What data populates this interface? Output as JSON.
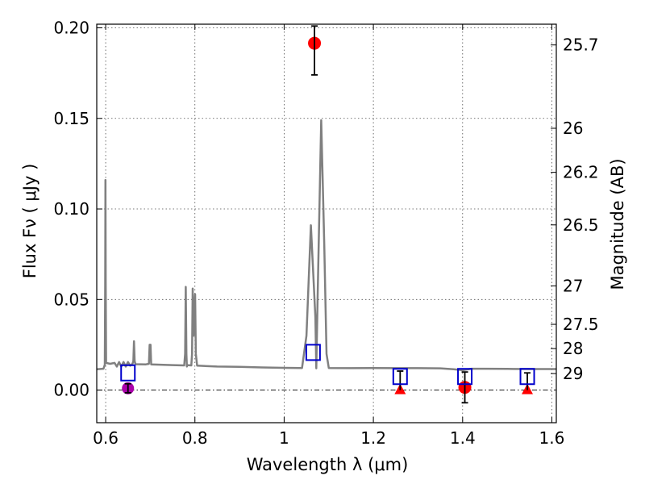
{
  "chart_data": {
    "type": "scatter",
    "title": "",
    "xlabel": "Wavelength  λ (μm)",
    "ylabel": "Flux  Fν  ( μJy )",
    "y2label": "Magnitude (AB)",
    "xlim": [
      0.58,
      1.61
    ],
    "ylim": [
      -0.018,
      0.202
    ],
    "xticks": [
      {
        "value": 0.6,
        "label": "0.6"
      },
      {
        "value": 0.8,
        "label": "0.8"
      },
      {
        "value": 1.0,
        "label": "1"
      },
      {
        "value": 1.2,
        "label": "1.2"
      },
      {
        "value": 1.4,
        "label": "1.4"
      },
      {
        "value": 1.6,
        "label": "1.6"
      }
    ],
    "yticks": [
      {
        "value": 0.0,
        "label": "0.00"
      },
      {
        "value": 0.05,
        "label": "0.05"
      },
      {
        "value": 0.1,
        "label": "0.10"
      },
      {
        "value": 0.15,
        "label": "0.15"
      },
      {
        "value": 0.2,
        "label": "0.20"
      }
    ],
    "mag_ticks": [
      {
        "mag": 25.7,
        "label": "25.7"
      },
      {
        "mag": 26,
        "label": "26"
      },
      {
        "mag": 26.2,
        "label": "26.2"
      },
      {
        "mag": 26.5,
        "label": "26.5"
      },
      {
        "mag": 27,
        "label": "27"
      },
      {
        "mag": 27.5,
        "label": "27.5"
      },
      {
        "mag": 28,
        "label": "28"
      },
      {
        "mag": 29,
        "label": "29"
      }
    ],
    "grid": true,
    "zero_line": true,
    "colors": {
      "spectrum": "#808080",
      "model_photometry": "#0000cc",
      "detections": "#ff0000",
      "upper_limits": "#ff0000",
      "optical_point": "#aa00aa",
      "errorbars": "#000000"
    },
    "spectrum": [
      [
        0.58,
        0.0115
      ],
      [
        0.595,
        0.0118
      ],
      [
        0.598,
        0.014
      ],
      [
        0.599,
        0.06
      ],
      [
        0.5995,
        0.116
      ],
      [
        0.6,
        0.06
      ],
      [
        0.601,
        0.015
      ],
      [
        0.61,
        0.0145
      ],
      [
        0.62,
        0.015
      ],
      [
        0.625,
        0.013
      ],
      [
        0.63,
        0.0155
      ],
      [
        0.635,
        0.013
      ],
      [
        0.64,
        0.0155
      ],
      [
        0.645,
        0.013
      ],
      [
        0.65,
        0.0155
      ],
      [
        0.655,
        0.0135
      ],
      [
        0.66,
        0.0145
      ],
      [
        0.662,
        0.016
      ],
      [
        0.6635,
        0.027
      ],
      [
        0.665,
        0.016
      ],
      [
        0.667,
        0.0143
      ],
      [
        0.69,
        0.0142
      ],
      [
        0.697,
        0.0145
      ],
      [
        0.6985,
        0.025
      ],
      [
        0.7005,
        0.025
      ],
      [
        0.702,
        0.0142
      ],
      [
        0.75,
        0.0138
      ],
      [
        0.776,
        0.0136
      ],
      [
        0.778,
        0.02
      ],
      [
        0.7795,
        0.057
      ],
      [
        0.781,
        0.02
      ],
      [
        0.782,
        0.013
      ],
      [
        0.783,
        0.0138
      ],
      [
        0.792,
        0.0136
      ],
      [
        0.7935,
        0.02
      ],
      [
        0.795,
        0.056
      ],
      [
        0.797,
        0.03
      ],
      [
        0.7985,
        0.045
      ],
      [
        0.8005,
        0.053
      ],
      [
        0.802,
        0.02
      ],
      [
        0.805,
        0.0135
      ],
      [
        0.85,
        0.013
      ],
      [
        0.9,
        0.0128
      ],
      [
        0.95,
        0.0125
      ],
      [
        1.0,
        0.0123
      ],
      [
        1.04,
        0.0122
      ],
      [
        1.05,
        0.03
      ],
      [
        1.06,
        0.091
      ],
      [
        1.07,
        0.04
      ],
      [
        1.072,
        0.012
      ],
      [
        1.075,
        0.05
      ],
      [
        1.083,
        0.149
      ],
      [
        1.09,
        0.08
      ],
      [
        1.095,
        0.02
      ],
      [
        1.1,
        0.0122
      ],
      [
        1.15,
        0.0121
      ],
      [
        1.2,
        0.0122
      ],
      [
        1.25,
        0.0121
      ],
      [
        1.3,
        0.0121
      ],
      [
        1.35,
        0.012
      ],
      [
        1.38,
        0.0115
      ],
      [
        1.4,
        0.011
      ],
      [
        1.42,
        0.0118
      ],
      [
        1.45,
        0.0118
      ],
      [
        1.5,
        0.0117
      ],
      [
        1.55,
        0.0116
      ],
      [
        1.61,
        0.0116
      ]
    ],
    "model_photometry": [
      {
        "x": 0.65,
        "y": 0.0095
      },
      {
        "x": 1.065,
        "y": 0.0208
      },
      {
        "x": 1.26,
        "y": 0.0075
      },
      {
        "x": 1.405,
        "y": 0.0075
      },
      {
        "x": 1.545,
        "y": 0.0075
      }
    ],
    "detections": [
      {
        "x": 1.068,
        "y": 0.1915,
        "err_low": 0.0175,
        "err_high": 0.0095
      },
      {
        "x": 1.405,
        "y": 0.0015,
        "err_low": 0.0085,
        "err_high": 0.0085
      }
    ],
    "upper_limits": [
      {
        "x": 1.26,
        "y": 0.0,
        "err_high": 0.0105
      },
      {
        "x": 1.545,
        "y": 0.0,
        "err_high": 0.0095
      }
    ],
    "optical_point": [
      {
        "x": 0.65,
        "y": 0.001,
        "err_low": 0.0025,
        "err_high": 0.0025
      }
    ]
  }
}
